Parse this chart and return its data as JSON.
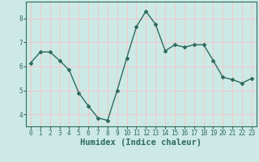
{
  "x": [
    0,
    1,
    2,
    3,
    4,
    5,
    6,
    7,
    8,
    9,
    10,
    11,
    12,
    13,
    14,
    15,
    16,
    17,
    18,
    19,
    20,
    21,
    22,
    23
  ],
  "y": [
    6.15,
    6.6,
    6.6,
    6.25,
    5.85,
    4.9,
    4.35,
    3.85,
    3.75,
    5.0,
    6.35,
    7.65,
    8.3,
    7.75,
    6.65,
    6.9,
    6.8,
    6.9,
    6.9,
    6.25,
    5.55,
    5.45,
    5.3,
    5.5
  ],
  "line_color": "#2e6b5e",
  "marker": "D",
  "marker_size": 2.0,
  "bg_color": "#cce9e5",
  "grid_color": "#f0c8c8",
  "xlabel": "Humidex (Indice chaleur)",
  "ylabel": "",
  "ylim": [
    3.5,
    8.7
  ],
  "xlim": [
    -0.5,
    23.5
  ],
  "yticks": [
    4,
    5,
    6,
    7,
    8
  ],
  "xticks": [
    0,
    1,
    2,
    3,
    4,
    5,
    6,
    7,
    8,
    9,
    10,
    11,
    12,
    13,
    14,
    15,
    16,
    17,
    18,
    19,
    20,
    21,
    22,
    23
  ],
  "xtick_labels": [
    "0",
    "1",
    "2",
    "3",
    "4",
    "5",
    "6",
    "7",
    "8",
    "9",
    "10",
    "11",
    "12",
    "13",
    "14",
    "15",
    "16",
    "17",
    "18",
    "19",
    "20",
    "21",
    "22",
    "23"
  ],
  "tick_fontsize": 5.5,
  "xlabel_fontsize": 7.5,
  "line_width": 1.0
}
